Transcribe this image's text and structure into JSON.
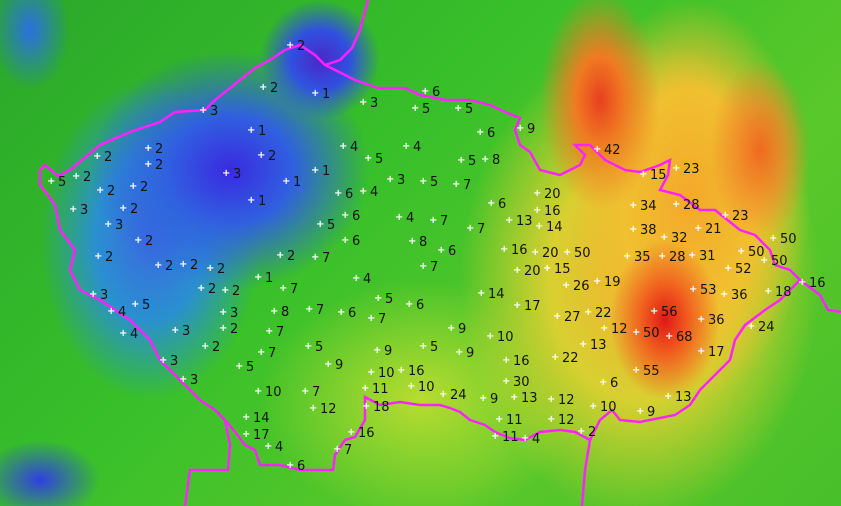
{
  "map": {
    "colors": {
      "border": "#ff22ff",
      "low": "#3a2ae0",
      "mid": "#38c02a",
      "high": "#f0b030",
      "peak": "#e01818",
      "station_marker": "#ffffff"
    },
    "station_marker_icon": "plus-icon",
    "values": [
      2,
      2,
      1,
      3,
      6,
      5,
      5,
      9,
      6,
      3,
      1,
      2,
      2,
      2,
      2,
      5,
      2,
      2,
      3,
      3,
      2,
      3,
      2,
      1,
      1,
      1,
      4,
      5,
      4,
      5,
      8,
      3,
      5,
      7,
      6,
      4,
      6,
      5,
      4,
      7,
      6,
      7,
      6,
      8,
      6,
      7,
      2,
      2,
      2,
      2,
      2,
      2,
      7,
      1,
      4,
      2,
      2,
      3,
      4,
      5,
      7,
      5,
      6,
      3,
      8,
      7,
      6,
      7,
      4,
      3,
      2,
      7,
      9,
      2,
      3,
      7,
      5,
      9,
      5,
      9,
      5,
      9,
      3,
      10,
      7,
      10,
      16,
      11,
      10,
      24,
      14,
      12,
      17,
      4,
      18,
      16,
      7,
      6,
      14,
      17,
      10,
      16,
      30,
      9,
      13,
      11,
      11,
      4,
      12,
      12,
      2,
      10,
      6,
      22,
      13,
      12,
      22,
      27,
      26,
      19,
      20,
      16,
      13,
      14,
      16,
      20,
      50,
      20,
      15,
      42,
      15,
      23,
      34,
      28,
      23,
      38,
      32,
      21,
      35,
      28,
      31,
      50,
      50,
      52,
      50,
      53,
      36,
      18,
      16,
      56,
      36,
      50,
      68,
      24,
      17,
      55,
      13,
      9
    ]
  }
}
